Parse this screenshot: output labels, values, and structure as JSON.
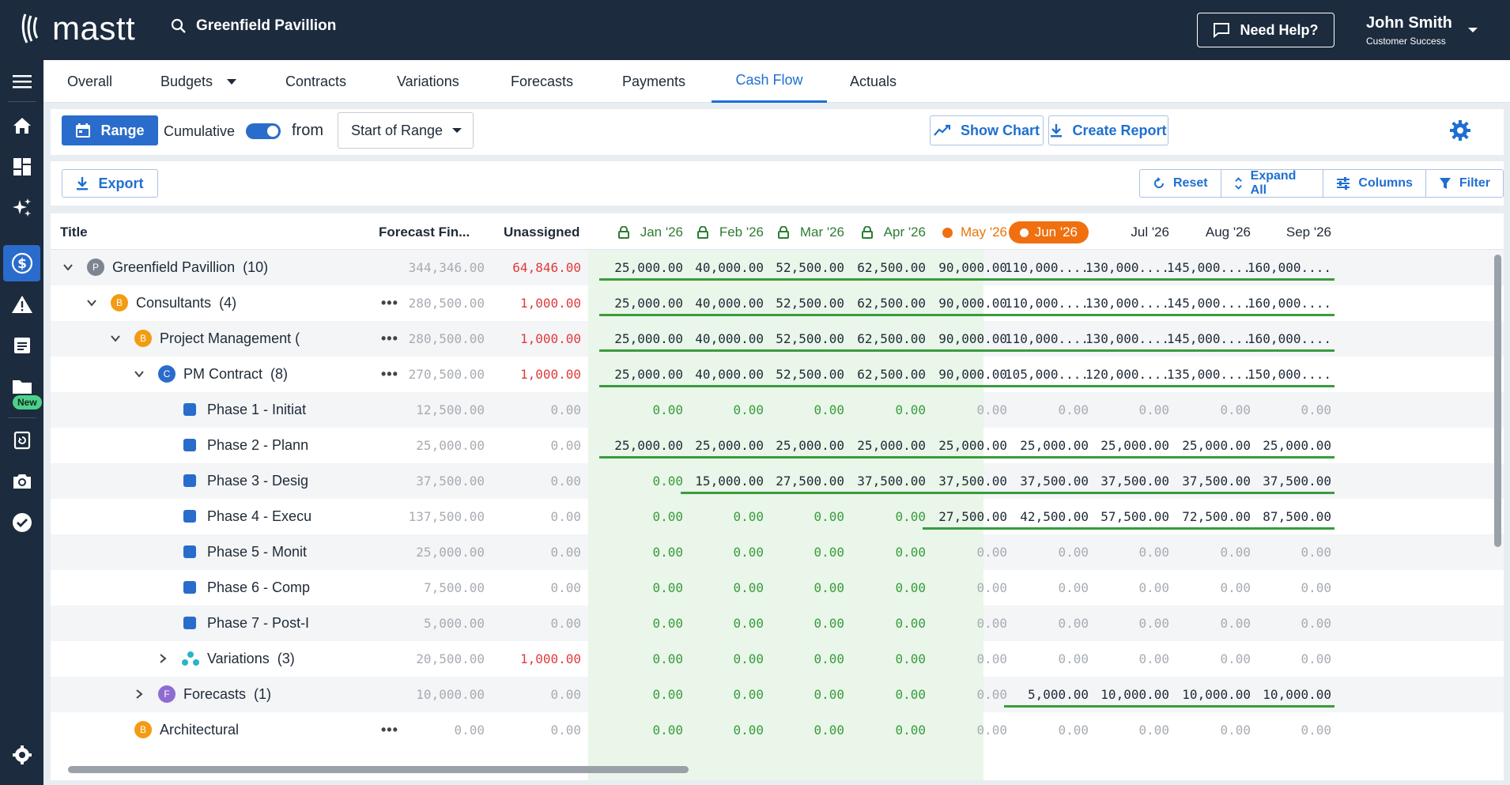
{
  "app": {
    "brand": "mastt",
    "project": "Greenfield Pavillion"
  },
  "header": {
    "help_label": "Need Help?",
    "user_name": "John Smith",
    "user_role": "Customer Success"
  },
  "sidebar": {
    "icons": [
      "menu-icon",
      "home-icon",
      "dashboard-icon",
      "sparkle-icon",
      "dollar-icon",
      "warning-icon",
      "document-icon",
      "folder-icon",
      "history-icon",
      "camera-icon",
      "check-circle-icon",
      "settings-icon"
    ],
    "new_badge": "New"
  },
  "tabs": [
    {
      "label": "Overall"
    },
    {
      "label": "Budgets"
    },
    {
      "label": "Contracts"
    },
    {
      "label": "Variations"
    },
    {
      "label": "Forecasts"
    },
    {
      "label": "Payments"
    },
    {
      "label": "Cash Flow"
    },
    {
      "label": "Actuals"
    }
  ],
  "controls": {
    "range_label": "Range",
    "cumulative_label": "Cumulative",
    "cumulative_on": true,
    "from_label": "from",
    "from_select": "Start of Range",
    "show_chart_label": "Show Chart",
    "create_report_label": "Create Report"
  },
  "toolbar": {
    "export_label": "Export",
    "reset_label": "Reset",
    "expand_label": "Expand All",
    "columns_label": "Columns",
    "filter_label": "Filter"
  },
  "grid": {
    "headers": {
      "title": "Title",
      "forecast": "Forecast Fin...",
      "unassigned": "Unassigned"
    },
    "months": [
      {
        "label": "Jan '26",
        "state": "locked"
      },
      {
        "label": "Feb '26",
        "state": "locked"
      },
      {
        "label": "Mar '26",
        "state": "locked"
      },
      {
        "label": "Apr '26",
        "state": "locked"
      },
      {
        "label": "May '26",
        "state": "past"
      },
      {
        "label": "Jun '26",
        "state": "current"
      },
      {
        "label": "Jul '26",
        "state": "future"
      },
      {
        "label": "Aug '26",
        "state": "future"
      },
      {
        "label": "Sep '26",
        "state": "future"
      }
    ],
    "rows": [
      {
        "title": "Greenfield Pavillion",
        "count": "(10)",
        "badge": "P",
        "forecast": "344,346.00",
        "unassigned": "64,846.00",
        "unassigned_red": true,
        "values": [
          "25,000.00",
          "40,000.00",
          "52,500.00",
          "62,500.00",
          "90,000.00",
          "110,000....",
          "130,000....",
          "145,000....",
          "160,000...."
        ]
      },
      {
        "title": "Consultants",
        "count": "(4)",
        "badge": "B",
        "forecast": "280,500.00",
        "unassigned": "1,000.00",
        "unassigned_red": true,
        "values": [
          "25,000.00",
          "40,000.00",
          "52,500.00",
          "62,500.00",
          "90,000.00",
          "110,000....",
          "130,000....",
          "145,000....",
          "160,000...."
        ]
      },
      {
        "title": "Project Management (",
        "count": "",
        "badge": "B",
        "forecast": "280,500.00",
        "unassigned": "1,000.00",
        "unassigned_red": true,
        "values": [
          "25,000.00",
          "40,000.00",
          "52,500.00",
          "62,500.00",
          "90,000.00",
          "110,000....",
          "130,000....",
          "145,000....",
          "160,000...."
        ]
      },
      {
        "title": "PM Contract",
        "count": "(8)",
        "badge": "C",
        "forecast": "270,500.00",
        "unassigned": "1,000.00",
        "unassigned_red": true,
        "values": [
          "25,000.00",
          "40,000.00",
          "52,500.00",
          "62,500.00",
          "90,000.00",
          "105,000....",
          "120,000....",
          "135,000....",
          "150,000...."
        ]
      },
      {
        "title": "Phase 1 - Initiat",
        "count": "",
        "badge": "",
        "forecast": "12,500.00",
        "unassigned": "0.00",
        "unassigned_red": false,
        "values": [
          "0.00",
          "0.00",
          "0.00",
          "0.00",
          "0.00",
          "0.00",
          "0.00",
          "0.00",
          "0.00"
        ]
      },
      {
        "title": "Phase 2 - Plann",
        "count": "",
        "badge": "",
        "forecast": "25,000.00",
        "unassigned": "0.00",
        "unassigned_red": false,
        "values": [
          "25,000.00",
          "25,000.00",
          "25,000.00",
          "25,000.00",
          "25,000.00",
          "25,000.00",
          "25,000.00",
          "25,000.00",
          "25,000.00"
        ]
      },
      {
        "title": "Phase 3 - Desig",
        "count": "",
        "badge": "",
        "forecast": "37,500.00",
        "unassigned": "0.00",
        "unassigned_red": false,
        "values": [
          "0.00",
          "15,000.00",
          "27,500.00",
          "37,500.00",
          "37,500.00",
          "37,500.00",
          "37,500.00",
          "37,500.00",
          "37,500.00"
        ]
      },
      {
        "title": "Phase 4 - Execu",
        "count": "",
        "badge": "",
        "forecast": "137,500.00",
        "unassigned": "0.00",
        "unassigned_red": false,
        "values": [
          "0.00",
          "0.00",
          "0.00",
          "0.00",
          "27,500.00",
          "42,500.00",
          "57,500.00",
          "72,500.00",
          "87,500.00"
        ]
      },
      {
        "title": "Phase 5 - Monit",
        "count": "",
        "badge": "",
        "forecast": "25,000.00",
        "unassigned": "0.00",
        "unassigned_red": false,
        "values": [
          "0.00",
          "0.00",
          "0.00",
          "0.00",
          "0.00",
          "0.00",
          "0.00",
          "0.00",
          "0.00"
        ]
      },
      {
        "title": "Phase 6 - Comp",
        "count": "",
        "badge": "",
        "forecast": "7,500.00",
        "unassigned": "0.00",
        "unassigned_red": false,
        "values": [
          "0.00",
          "0.00",
          "0.00",
          "0.00",
          "0.00",
          "0.00",
          "0.00",
          "0.00",
          "0.00"
        ]
      },
      {
        "title": "Phase 7 - Post-I",
        "count": "",
        "badge": "",
        "forecast": "5,000.00",
        "unassigned": "0.00",
        "unassigned_red": false,
        "values": [
          "0.00",
          "0.00",
          "0.00",
          "0.00",
          "0.00",
          "0.00",
          "0.00",
          "0.00",
          "0.00"
        ]
      },
      {
        "title": "Variations",
        "count": "(3)",
        "badge": "",
        "forecast": "20,500.00",
        "unassigned": "1,000.00",
        "unassigned_red": true,
        "values": [
          "0.00",
          "0.00",
          "0.00",
          "0.00",
          "0.00",
          "0.00",
          "0.00",
          "0.00",
          "0.00"
        ]
      },
      {
        "title": "Forecasts",
        "count": "(1)",
        "badge": "F",
        "forecast": "10,000.00",
        "unassigned": "0.00",
        "unassigned_red": false,
        "values": [
          "0.00",
          "0.00",
          "0.00",
          "0.00",
          "0.00",
          "5,000.00",
          "10,000.00",
          "10,000.00",
          "10,000.00"
        ]
      },
      {
        "title": "Architectural",
        "count": "",
        "badge": "B",
        "forecast": "0.00",
        "unassigned": "0.00",
        "unassigned_red": false,
        "values": [
          "0.00",
          "0.00",
          "0.00",
          "0.00",
          "0.00",
          "0.00",
          "0.00",
          "0.00",
          "0.00"
        ]
      }
    ]
  }
}
